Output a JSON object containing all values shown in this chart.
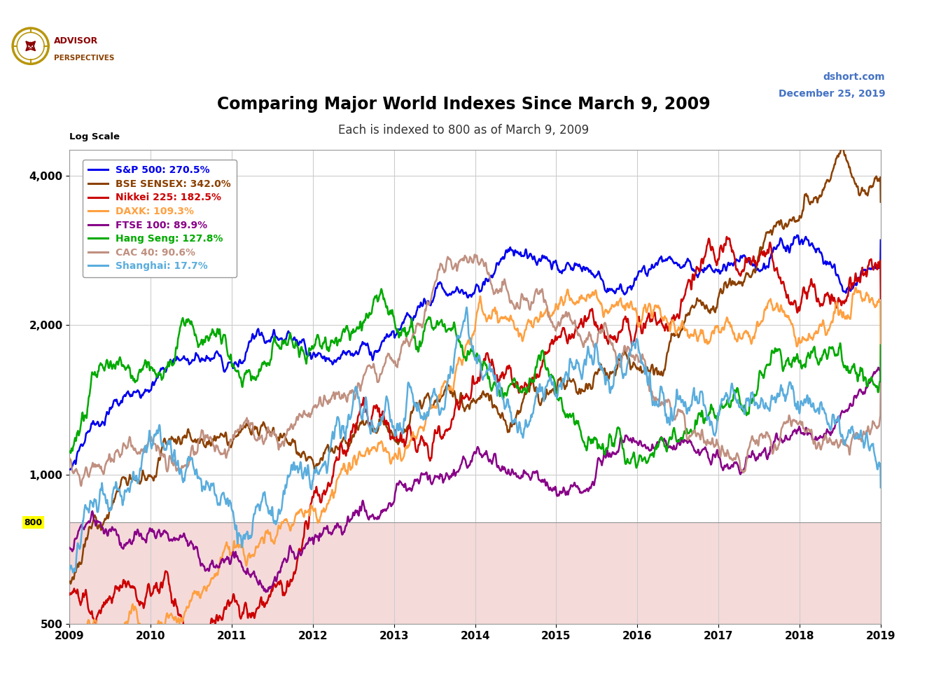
{
  "title": "Comparing Major World Indexes Since March 9, 2009",
  "subtitle": "Each is indexed to 800 as of March 9, 2009",
  "date_label_line1": "dshort.com",
  "date_label_line2": "December 25, 2019",
  "log_scale_label": "Log Scale",
  "base_value": 800,
  "ylim_low": 500,
  "ylim_high": 4500,
  "ytick_vals": [
    500,
    1000,
    2000,
    4000
  ],
  "ytick_labels": [
    "500",
    "1,000",
    "2,000",
    "4,000"
  ],
  "xlabel_years": [
    "2009",
    "2010",
    "2011",
    "2012",
    "2013",
    "2014",
    "2015",
    "2016",
    "2017",
    "2018",
    "2019"
  ],
  "series": [
    {
      "name": "S&P 500: 270.5%",
      "color": "#0000EE",
      "final_pct": 270.5,
      "linewidth": 1.8
    },
    {
      "name": "BSE SENSEX: 342.0%",
      "color": "#8B4000",
      "final_pct": 342.0,
      "linewidth": 1.8
    },
    {
      "name": "Nikkei 225: 182.5%",
      "color": "#CC0000",
      "final_pct": 182.5,
      "linewidth": 1.8
    },
    {
      "name": "DAXK: 109.3%",
      "color": "#FFA040",
      "final_pct": 109.3,
      "linewidth": 1.8
    },
    {
      "name": "FTSE 100: 89.9%",
      "color": "#880088",
      "final_pct": 89.9,
      "linewidth": 1.8
    },
    {
      "name": "Hang Seng: 127.8%",
      "color": "#00AA00",
      "final_pct": 127.8,
      "linewidth": 1.8
    },
    {
      "name": "CAC 40: 90.6%",
      "color": "#C09080",
      "final_pct": 90.6,
      "linewidth": 1.8
    },
    {
      "name": "Shanghai: 17.7%",
      "color": "#5AADDD",
      "final_pct": 17.7,
      "linewidth": 1.8
    }
  ],
  "background_color": "#FFFFFF",
  "plot_bg_color": "#FFFFFF",
  "below800_color": "#F5DADA",
  "grid_color": "#CCCCCC",
  "border_color": "#999999",
  "title_color": "#000000",
  "title_fontsize": 17,
  "subtitle_fontsize": 12,
  "legend_fontsize": 10,
  "800_label_bg": "#FFFF00",
  "advisor_color1": "#8B0000",
  "advisor_color2": "#B8960C"
}
